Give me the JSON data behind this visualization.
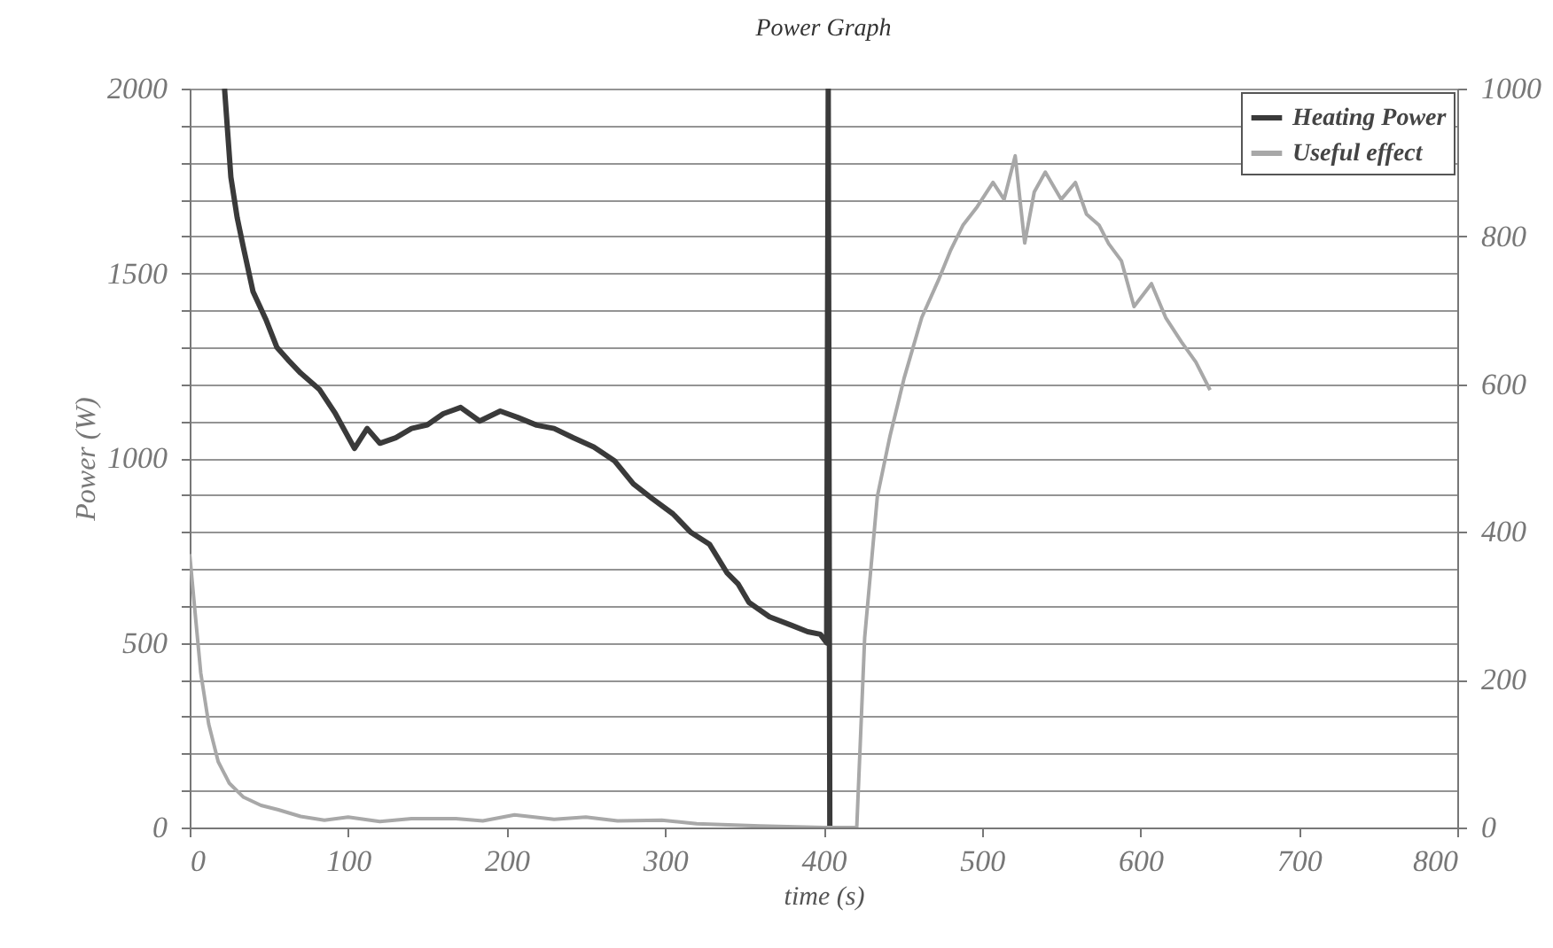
{
  "chart_data": {
    "type": "line",
    "title": "Power Graph",
    "xlabel": "time (s)",
    "ylabel": "Power (W)",
    "xlim": [
      0,
      800
    ],
    "xticks": [
      0,
      100,
      200,
      300,
      400,
      500,
      600,
      700,
      800
    ],
    "ylim": [
      0,
      2000
    ],
    "yticks": [
      0,
      {
        "value": 100,
        "label": null
      },
      {
        "value": 200,
        "label": null
      },
      {
        "value": 300,
        "label": null
      },
      {
        "value": 400,
        "label": null
      },
      500,
      {
        "value": 600,
        "label": null
      },
      {
        "value": 700,
        "label": null
      },
      {
        "value": 800,
        "label": null
      },
      {
        "value": 900,
        "label": null
      },
      1000,
      {
        "value": 1100,
        "label": null
      },
      {
        "value": 1200,
        "label": null
      },
      {
        "value": 1300,
        "label": null
      },
      {
        "value": 1400,
        "label": null
      },
      1500,
      {
        "value": 1600,
        "label": null
      },
      {
        "value": 1700,
        "label": null
      },
      {
        "value": 1800,
        "label": null
      },
      {
        "value": 1900,
        "label": null
      },
      2000
    ],
    "y2lim": [
      0,
      1000
    ],
    "y2ticks": [
      0,
      200,
      400,
      600,
      800,
      1000
    ],
    "grid": "y",
    "legend": "top right",
    "line_style": "solid",
    "series": [
      {
        "name": "Heating Power",
        "color": "#3a3a3a",
        "x": [
          22,
          26,
          30,
          34,
          40,
          48,
          55,
          62,
          70,
          82,
          92,
          104,
          112,
          120,
          130,
          140,
          150,
          160,
          171,
          183,
          196,
          207,
          219,
          230,
          242,
          255,
          268,
          280,
          292,
          305,
          316,
          328,
          339,
          346,
          353,
          366,
          380,
          390,
          398,
          402,
          403,
          404
        ],
        "values": [
          2000,
          1760,
          1650,
          1568,
          1450,
          1376,
          1300,
          1266,
          1230,
          1185,
          1120,
          1026,
          1080,
          1040,
          1055,
          1080,
          1090,
          1120,
          1137,
          1100,
          1127,
          1110,
          1089,
          1080,
          1055,
          1030,
          993,
          930,
          890,
          849,
          800,
          767,
          690,
          660,
          609,
          570,
          547,
          530,
          523,
          500,
          2000,
          0
        ]
      },
      {
        "name": "Useful effect",
        "color": "#a8a8a8",
        "axis": "y2",
        "x": [
          0,
          3,
          7,
          12,
          18,
          25,
          34,
          45,
          56,
          70,
          85,
          100,
          120,
          140,
          168,
          185,
          205,
          230,
          250,
          270,
          298,
          320,
          360,
          400,
          421,
          426,
          432,
          434,
          442,
          451,
          462,
          473,
          480,
          488,
          497,
          507,
          514,
          521,
          527,
          533,
          540,
          550,
          559,
          566,
          574,
          580,
          588,
          596,
          607,
          616,
          626,
          635,
          644
        ],
        "values": [
          370,
          300,
          209,
          140,
          89,
          60,
          41,
          30,
          24,
          15,
          10,
          14,
          8,
          12,
          12,
          9,
          17,
          11,
          14,
          9,
          10,
          5,
          2,
          0,
          0,
          257,
          400,
          448,
          530,
          609,
          690,
          743,
          780,
          815,
          840,
          873,
          850,
          909,
          791,
          860,
          887,
          850,
          873,
          830,
          815,
          790,
          767,
          705,
          736,
          690,
          657,
          630,
          592
        ]
      }
    ]
  }
}
